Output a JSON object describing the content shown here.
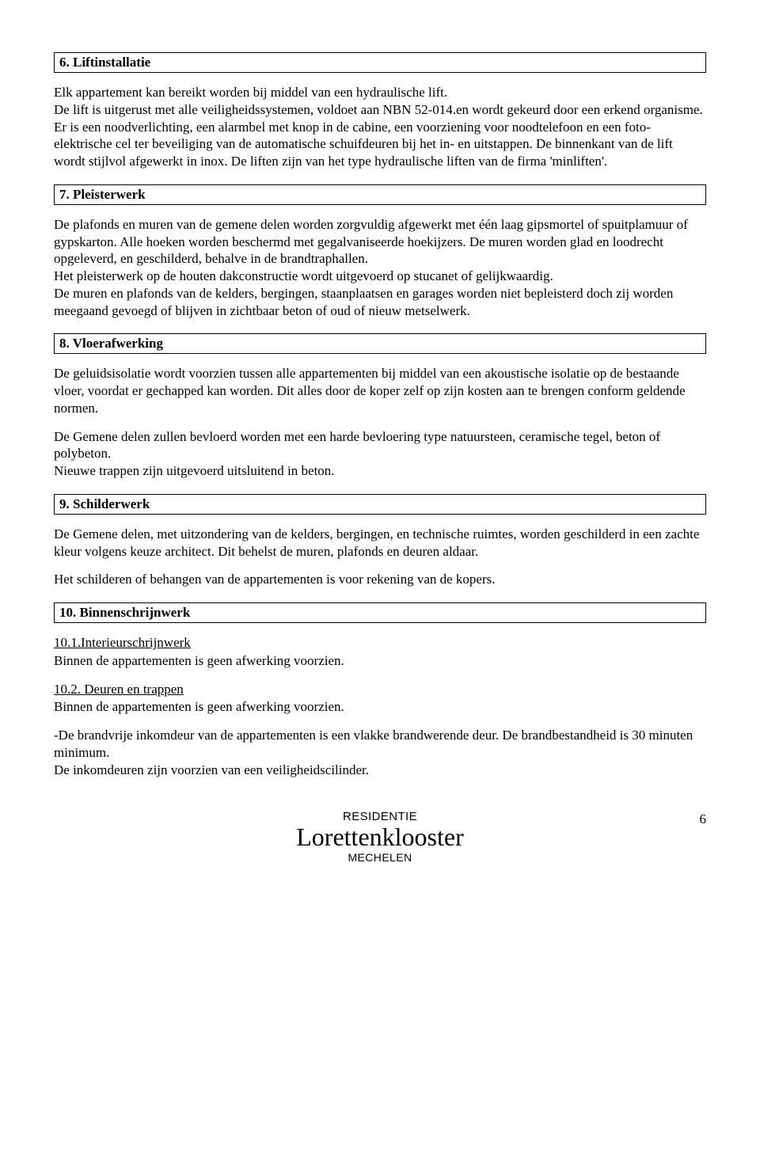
{
  "sections": {
    "s6": {
      "heading": "6. Liftinstallatie",
      "p1": "Elk appartement kan bereikt worden bij middel van een hydraulische lift.",
      "p2": "De lift is uitgerust met alle veiligheidssystemen, voldoet aan NBN 52-014.en wordt gekeurd door een erkend organisme.",
      "p3": "Er is een noodverlichting, een alarmbel met knop in de cabine, een voorziening voor noodtelefoon en een foto-elektrische cel ter beveiliging van de automatische schuifdeuren bij het in- en uitstappen. De binnenkant van de lift wordt stijlvol afgewerkt in inox. De liften zijn van het type hydraulische liften van de firma 'minliften'."
    },
    "s7": {
      "heading": "7. Pleisterwerk",
      "p1": "De plafonds en muren van de gemene delen  worden zorgvuldig afgewerkt met één laag gipsmortel of spuitplamuur of gypskarton. Alle hoeken worden beschermd met gegalvaniseerde hoekijzers. De muren worden glad en loodrecht opgeleverd, en geschilderd, behalve in de brandtraphallen.",
      "p2": "Het pleisterwerk op de houten dakconstructie wordt uitgevoerd op stucanet of gelijkwaardig.",
      "p3": "De muren en plafonds van de kelders, bergingen, staanplaatsen en garages worden niet bepleisterd doch zij worden meegaand gevoegd of blijven in zichtbaar beton of oud of nieuw metselwerk."
    },
    "s8": {
      "heading": "8. Vloerafwerking",
      "p1": "De geluidsisolatie wordt voorzien tussen alle appartementen bij middel van een akoustische isolatie op de bestaande vloer, voordat er gechapped kan worden. Dit alles door de koper zelf op zijn kosten aan te brengen conform geldende normen.",
      "p2": "De Gemene delen zullen bevloerd worden met een harde bevloering type natuursteen, ceramische tegel, beton of polybeton.",
      "p3": "Nieuwe trappen zijn uitgevoerd uitsluitend in beton."
    },
    "s9": {
      "heading": "9. Schilderwerk",
      "p1": "De Gemene delen, met uitzondering van de kelders, bergingen, en technische ruimtes, worden geschilderd in een zachte kleur volgens keuze architect. Dit behelst de muren, plafonds en deuren aldaar.",
      "p2": "Het schilderen of behangen van de appartementen is voor rekening van de kopers."
    },
    "s10": {
      "heading": "10. Binnenschrijnwerk",
      "sub1_title": "10.1.Interieurschrijnwerk",
      "sub1_body": "Binnen de appartementen is geen afwerking voorzien.",
      "sub2_title": "10.2. Deuren en trappen",
      "sub2_body": "Binnen de appartementen is geen afwerking voorzien.",
      "p3": "-De brandvrije inkomdeur van de appartementen is een vlakke brandwerende deur. De brandbestandheid is 30 minuten minimum.",
      "p4": "De inkomdeuren zijn voorzien van een veiligheidscilinder."
    }
  },
  "footer": {
    "line1": "RESIDENTIE",
    "line2": "Lorettenklooster",
    "line3": "MECHELEN",
    "page_number": "6"
  }
}
